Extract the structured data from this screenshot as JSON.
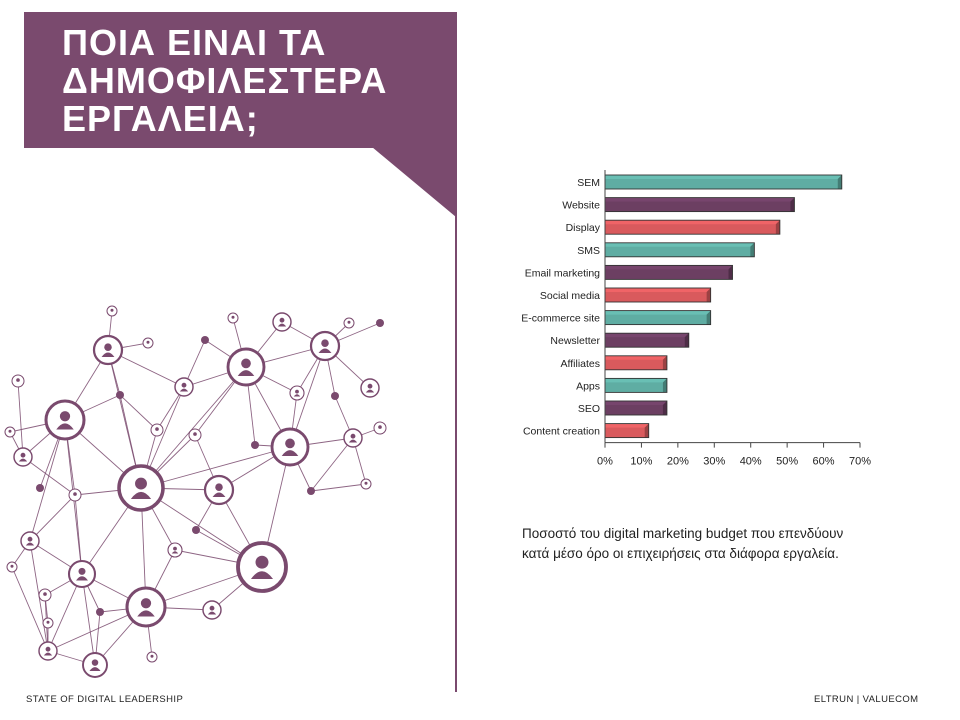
{
  "header": {
    "title_lines": [
      "ΠΟΙΑ ΕΙΝΑΙ ΤΑ",
      "ΔΗΜΟΦΙΛΕΣΤΕΡΑ",
      "ΕΡΓΑΛΕΙΑ;"
    ]
  },
  "chart_data": {
    "type": "bar",
    "orientation": "horizontal",
    "categories": [
      "SEM",
      "Website",
      "Display",
      "SMS",
      "Email marketing",
      "Social media",
      "E-commerce site",
      "Newsletter",
      "Affiliates",
      "Apps",
      "SEO",
      "Content creation"
    ],
    "values": [
      65,
      52,
      48,
      41,
      35,
      29,
      29,
      23,
      17,
      17,
      17,
      12
    ],
    "xlim": [
      0,
      70
    ],
    "xticks": [
      "0%",
      "10%",
      "20%",
      "30%",
      "40%",
      "50%",
      "60%",
      "70%"
    ],
    "grid": false,
    "bar_colors": [
      "#5fada3",
      "#6c3f62",
      "#d95a5d",
      "#5fada3",
      "#6c3f62",
      "#d95a5d",
      "#5fada3",
      "#6c3f62",
      "#d95a5d",
      "#5fada3",
      "#6c3f62",
      "#d95a5d"
    ],
    "xlabel": "",
    "ylabel": ""
  },
  "caption": {
    "line1": "Ποσοστό του digital marketing budget που επενδύουν",
    "line2": "κατά μέσο όρο οι επιχειρήσεις στα διάφορα εργαλεία."
  },
  "footer": {
    "left": "STATE OF DIGITAL LEADERSHIP",
    "right": "ELTRUN | VALUECOM"
  },
  "colors": {
    "brand_purple": "#7a4a6e",
    "teal": "#5fada3",
    "dark_purple": "#6c3f62",
    "coral": "#d95a5d"
  },
  "illustration": {
    "icon": "person-icon"
  }
}
